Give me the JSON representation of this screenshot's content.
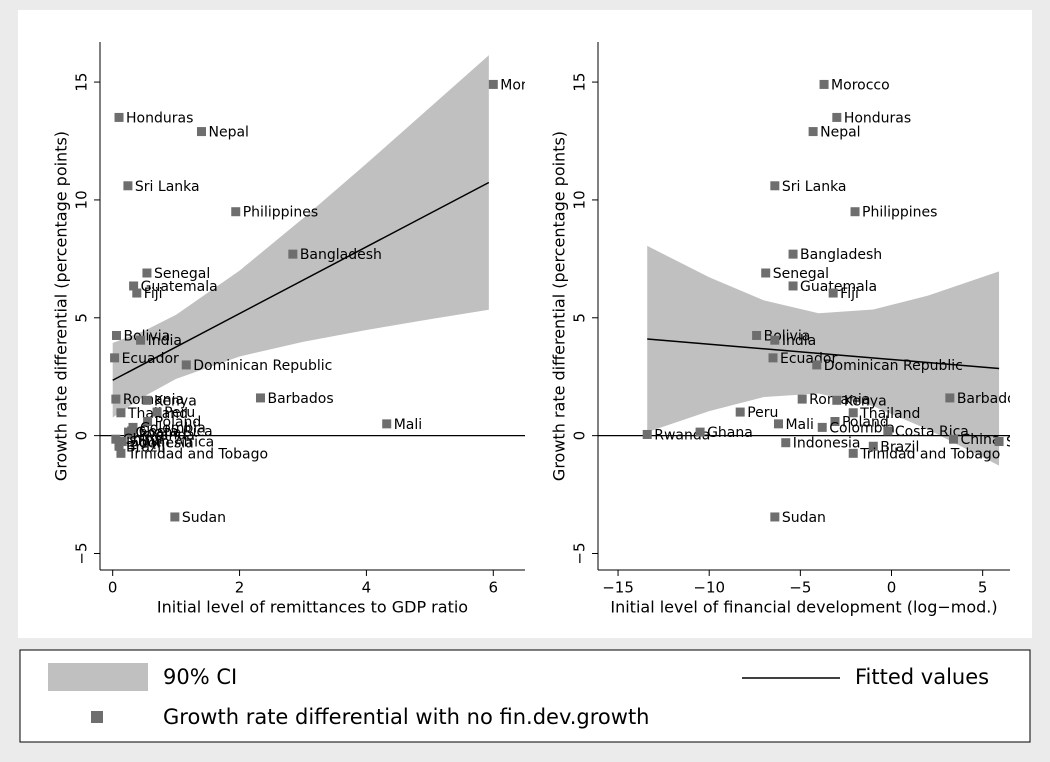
{
  "chart_data": [
    {
      "type": "scatter",
      "xlabel": "Initial level of remittances to GDP ratio",
      "ylabel": "Growth rate differential (percentage points)",
      "xlim": [
        -0.2,
        6.5
      ],
      "ylim": [
        -5.7,
        16.7
      ],
      "xticks": [
        0,
        2,
        4,
        6
      ],
      "yticks": [
        {
          "value": -5,
          "label": "−5"
        },
        0,
        5,
        10,
        15
      ],
      "yline": 0,
      "points": {
        "color": "#6e6e6e",
        "labels": [
          "Morocco",
          "Honduras",
          "Nepal",
          "Sri Lanka",
          "Philippines",
          "Bangladesh",
          "Senegal",
          "Guatemala",
          "Fiji",
          "Bolivia",
          "India",
          "Ecuador",
          "Dominican Republic",
          "Barbados",
          "Romania",
          "Kenya",
          "Thailand",
          "Peru",
          "Poland",
          "Mali",
          "Colombia",
          "Costa Rica",
          "Rwanda",
          "Ghana",
          "Indonesia",
          "Brazil",
          "China",
          "South Africa",
          "Trinidad and Tobago",
          "Sudan"
        ],
        "x": [
          6.0,
          0.1,
          1.4,
          0.24,
          1.94,
          2.84,
          0.54,
          0.33,
          0.38,
          0.06,
          0.44,
          0.03,
          1.16,
          2.33,
          0.05,
          0.54,
          0.13,
          0.7,
          0.55,
          4.32,
          0.32,
          0.3,
          0.3,
          0.25,
          0.1,
          0.1,
          0.05,
          0.15,
          0.13,
          0.98
        ],
        "y": [
          14.9,
          13.5,
          12.9,
          10.6,
          9.5,
          7.7,
          6.9,
          6.35,
          6.05,
          4.25,
          4.05,
          3.3,
          3.0,
          1.6,
          1.55,
          1.5,
          0.97,
          1.0,
          0.6,
          0.5,
          0.35,
          0.2,
          0.05,
          0.15,
          -0.3,
          -0.45,
          -0.15,
          -0.25,
          -0.75,
          -3.45
        ]
      },
      "fit": {
        "color": "#000000",
        "x": [
          0,
          5.93
        ],
        "y": [
          2.35,
          10.74
        ]
      },
      "ci": {
        "color": "#c0c0c0",
        "x": [
          0,
          0.5,
          1,
          2,
          3,
          4,
          5,
          5.93
        ],
        "lower": [
          0.77,
          1.67,
          2.41,
          3.36,
          3.98,
          4.48,
          4.94,
          5.34
        ],
        "upper": [
          3.93,
          4.45,
          5.13,
          7.0,
          9.22,
          11.54,
          13.92,
          16.14
        ]
      }
    },
    {
      "type": "scatter",
      "xlabel": "Initial level of financial development (log−mod.)",
      "ylabel": "Growth rate differential (percentage points)",
      "xlim": [
        -16.1,
        6.5
      ],
      "ylim": [
        -5.7,
        16.7
      ],
      "xticks": [
        {
          "value": -15,
          "label": "−15"
        },
        {
          "value": -10,
          "label": "−10"
        },
        {
          "value": -5,
          "label": "−5"
        },
        0,
        5
      ],
      "yticks": [
        {
          "value": -5,
          "label": "−5"
        },
        0,
        5,
        10,
        15
      ],
      "yline": 0,
      "points": {
        "color": "#6e6e6e",
        "labels": [
          "Morocco",
          "Honduras",
          "Nepal",
          "Sri Lanka",
          "Philippines",
          "Bangladesh",
          "Senegal",
          "Guatemala",
          "Fiji",
          "Bolivia",
          "India",
          "Ecuador",
          "Dominican Republic",
          "Barbados",
          "Romania",
          "Kenya",
          "Thailand",
          "Peru",
          "Poland",
          "Mali",
          "Colombia",
          "Costa Rica",
          "Rwanda",
          "Ghana",
          "Indonesia",
          "Brazil",
          "China",
          "South Africa",
          "Trinidad and Tobago",
          "Sudan"
        ],
        "x": [
          -3.7,
          -3.0,
          -4.3,
          -6.4,
          -2.0,
          -5.4,
          -6.9,
          -5.4,
          -3.2,
          -7.4,
          -6.4,
          -6.5,
          -4.1,
          3.2,
          -4.9,
          -3.0,
          -2.1,
          -8.3,
          -3.1,
          -6.2,
          -3.8,
          -0.2,
          -13.4,
          -10.5,
          -5.8,
          -1.0,
          3.4,
          5.9,
          -2.1,
          -6.4
        ],
        "y": [
          14.9,
          13.5,
          12.9,
          10.6,
          9.5,
          7.7,
          6.9,
          6.35,
          6.05,
          4.25,
          4.05,
          3.3,
          3.0,
          1.6,
          1.55,
          1.5,
          0.97,
          1.0,
          0.6,
          0.5,
          0.35,
          0.2,
          0.05,
          0.15,
          -0.3,
          -0.45,
          -0.15,
          -0.25,
          -0.75,
          -3.45
        ]
      },
      "fit": {
        "color": "#000000",
        "x": [
          -13.4,
          5.9
        ],
        "y": [
          4.1,
          2.85
        ]
      },
      "ci": {
        "color": "#c0c0c0",
        "x": [
          -13.4,
          -10,
          -7,
          -4,
          -1,
          2,
          5.9
        ],
        "lower": [
          0.15,
          1.04,
          1.64,
          1.79,
          1.25,
          0.26,
          -1.27
        ],
        "upper": [
          8.05,
          6.72,
          5.74,
          5.19,
          5.35,
          5.94,
          6.97
        ]
      }
    }
  ],
  "legend": {
    "ci": "90% CI",
    "fit": "Fitted values",
    "points": "Growth rate differential with no fin.dev.growth"
  }
}
